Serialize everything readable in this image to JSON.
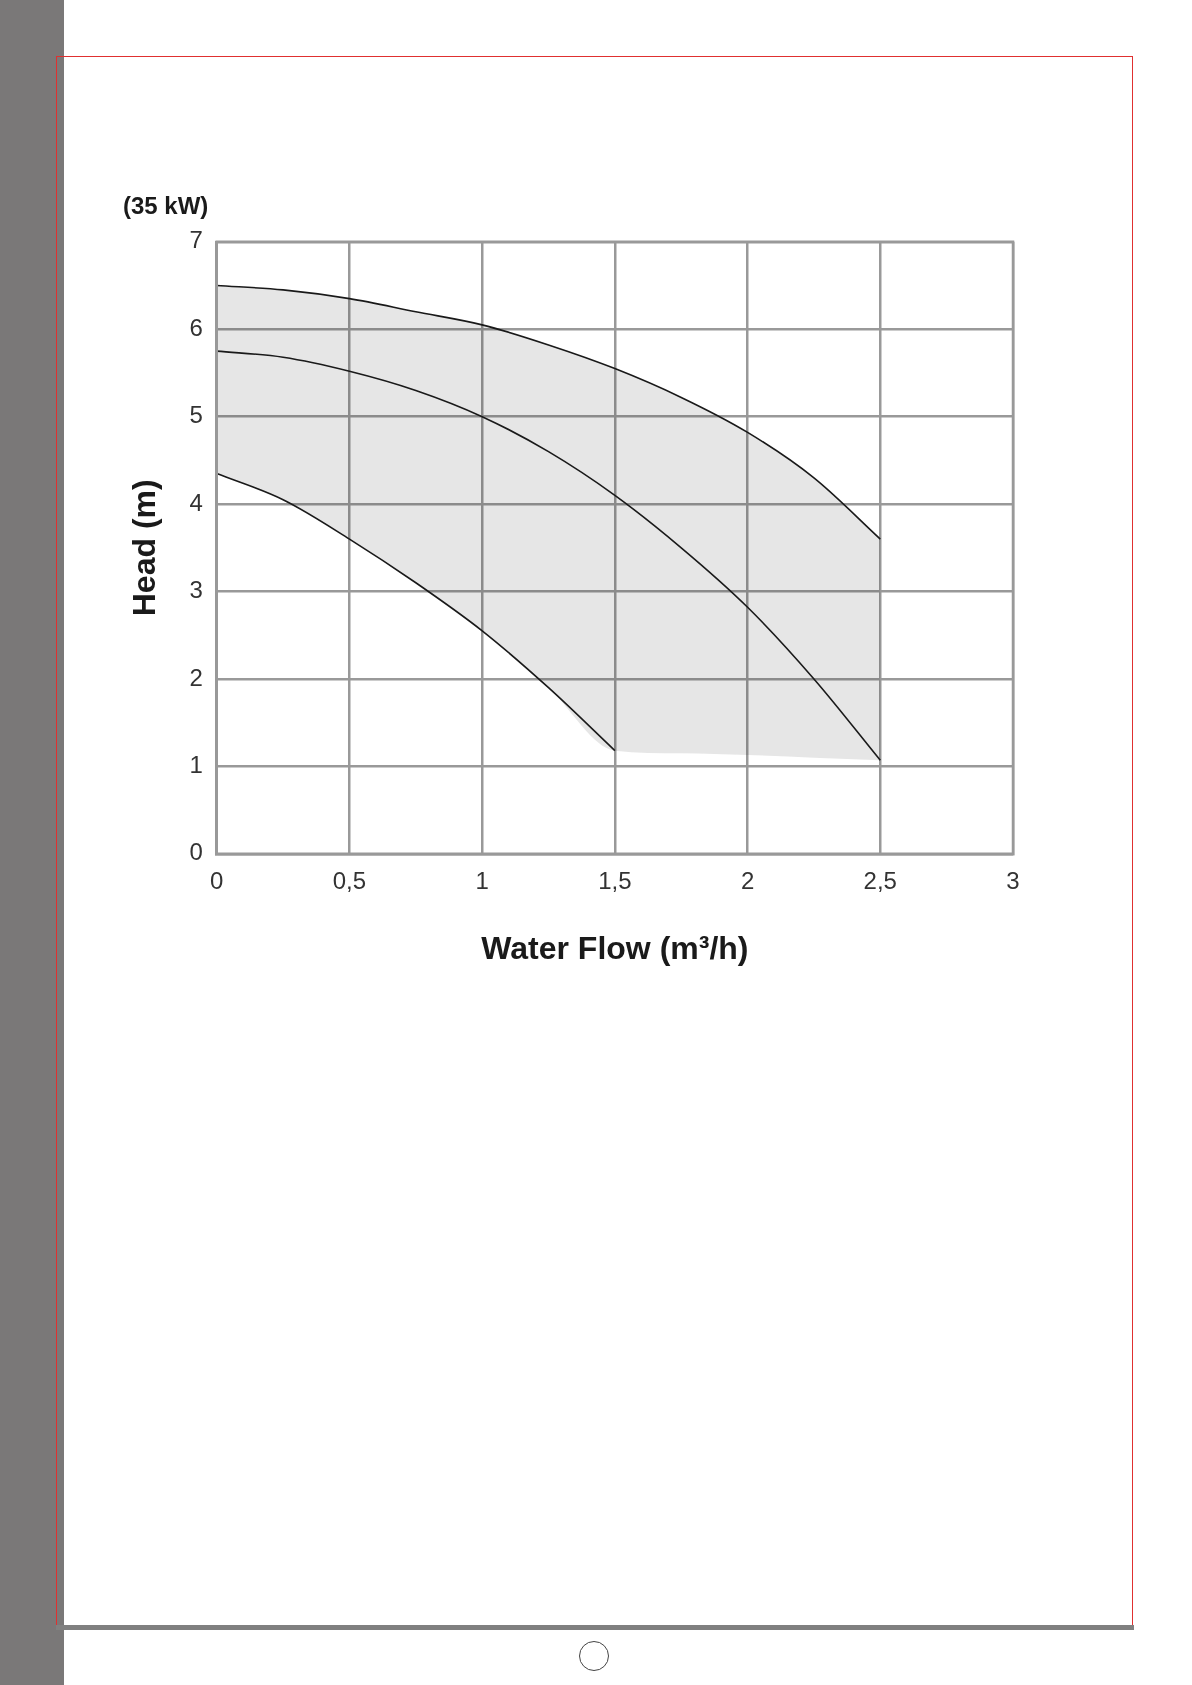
{
  "chart_data": {
    "type": "line",
    "title": "(35 kW)",
    "xlabel": "Water Flow (m³/h)",
    "ylabel": "Head (m)",
    "xlim": [
      0,
      3
    ],
    "xticks": [
      0,
      {
        "value": 0.5,
        "label": "0,5"
      },
      1,
      {
        "value": 1.5,
        "label": "1,5"
      },
      2,
      {
        "value": 2.5,
        "label": "2,5"
      },
      3
    ],
    "ylim": [
      0,
      7
    ],
    "yticks": [
      0,
      1,
      2,
      3,
      4,
      5,
      6,
      7
    ],
    "grid": true,
    "legend": false,
    "marker": "none",
    "line_style": "solid",
    "series": [
      {
        "color": "#1a1a1a",
        "x": [
          0,
          0.25,
          0.5,
          0.75,
          1,
          1.25,
          1.5,
          1.75,
          2,
          2.25,
          2.5
        ],
        "values": [
          6.5,
          6.45,
          6.35,
          6.2,
          6.05,
          5.82,
          5.55,
          5.22,
          4.82,
          4.3,
          3.6
        ],
        "lower": [
          4.35,
          4.05,
          3.6,
          3.1,
          2.55,
          1.9,
          1.18,
          1.15,
          1.13,
          1.1,
          1.07
        ],
        "upper": [
          6.5,
          6.45,
          6.35,
          6.2,
          6.05,
          5.82,
          5.55,
          5.22,
          4.82,
          4.3,
          3.6
        ]
      },
      {
        "color": "#1a1a1a",
        "x": [
          0,
          0.25,
          0.5,
          0.75,
          1,
          1.25,
          1.5,
          1.75,
          2,
          2.25,
          2.5
        ],
        "values": [
          5.75,
          5.68,
          5.52,
          5.3,
          5.0,
          4.6,
          4.1,
          3.5,
          2.82,
          2.0,
          1.07
        ]
      },
      {
        "color": "#1a1a1a",
        "x": [
          0,
          0.25,
          0.5,
          0.75,
          1,
          1.25,
          1.5
        ],
        "values": [
          4.35,
          4.05,
          3.6,
          3.1,
          2.55,
          1.9,
          1.18
        ]
      }
    ]
  }
}
